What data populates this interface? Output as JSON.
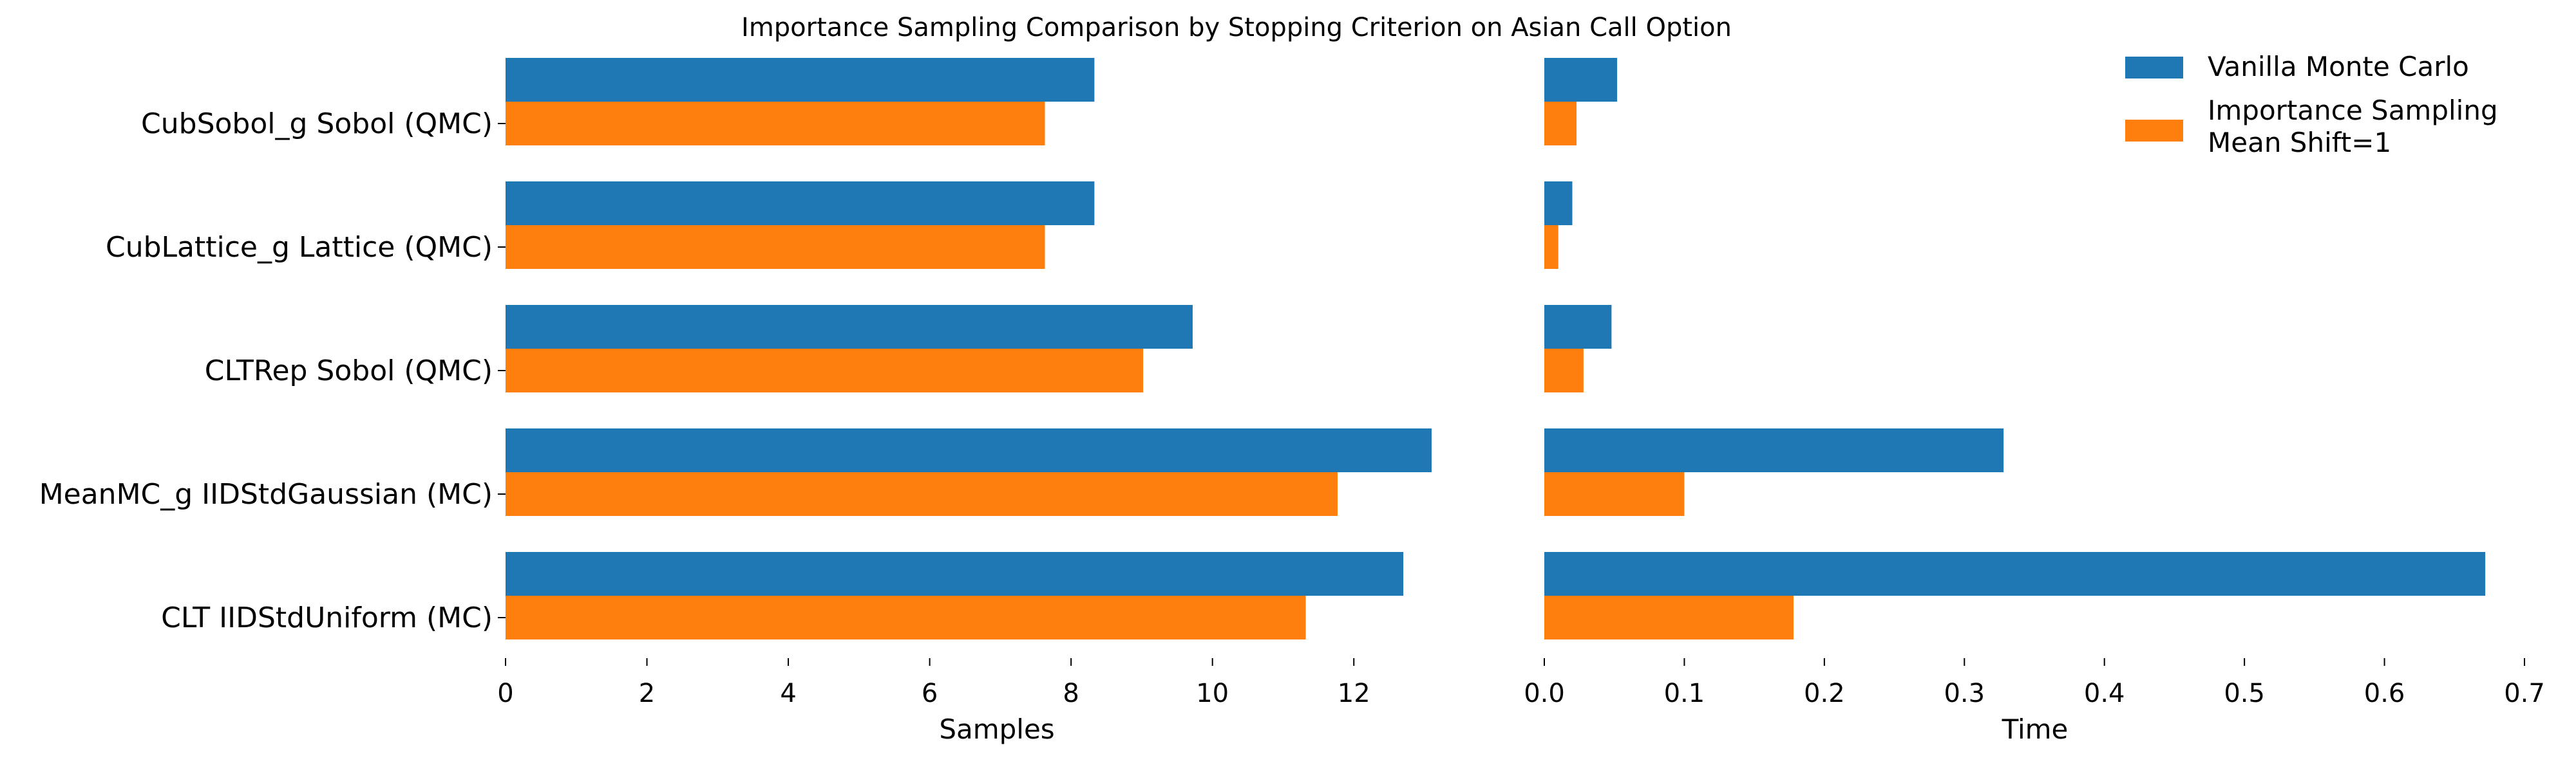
{
  "chart_data": {
    "type": "bar",
    "orientation": "horizontal",
    "title": "Importance Sampling Comparison by Stopping Criterion on Asian Call Option",
    "categories": [
      "CubSobol_g Sobol (QMC)",
      "CubLattice_g Lattice (QMC)",
      "CLTRep Sobol (QMC)",
      "MeanMC_g IIDStdGaussian (MC)",
      "CLT IIDStdUniform (MC)"
    ],
    "legend": {
      "placement": "top-right",
      "entries": [
        "Vanilla Monte Carlo",
        "Importance Sampling\nMean Shift=1"
      ]
    },
    "colors": {
      "vanilla": "#1f77b4",
      "importance": "#ff7f0e"
    },
    "panels": [
      {
        "xlabel": "Samples",
        "xlim": [
          0,
          13.8
        ],
        "xticks": [
          0,
          2,
          4,
          6,
          8,
          10,
          12
        ],
        "tick_labels": [
          "0",
          "2",
          "4",
          "6",
          "8",
          "10",
          "12"
        ],
        "series": [
          {
            "name": "Vanilla Monte Carlo",
            "values": [
              8.33,
              8.33,
              9.72,
              13.1,
              12.7
            ]
          },
          {
            "name": "Importance Sampling Mean Shift=1",
            "values": [
              7.63,
              7.63,
              9.02,
              11.77,
              11.32
            ]
          }
        ]
      },
      {
        "xlabel": "Time",
        "xlim": [
          0,
          0.7
        ],
        "xticks": [
          0,
          0.1,
          0.2,
          0.3,
          0.4,
          0.5,
          0.6,
          0.7
        ],
        "tick_labels": [
          "0.0",
          "0.1",
          "0.2",
          "0.3",
          "0.4",
          "0.5",
          "0.6",
          "0.7"
        ],
        "series": [
          {
            "name": "Vanilla Monte Carlo",
            "values": [
              0.052,
              0.02,
              0.048,
              0.328,
              0.672
            ]
          },
          {
            "name": "Importance Sampling Mean Shift=1",
            "values": [
              0.023,
              0.01,
              0.028,
              0.1,
              0.178
            ]
          }
        ]
      }
    ]
  }
}
